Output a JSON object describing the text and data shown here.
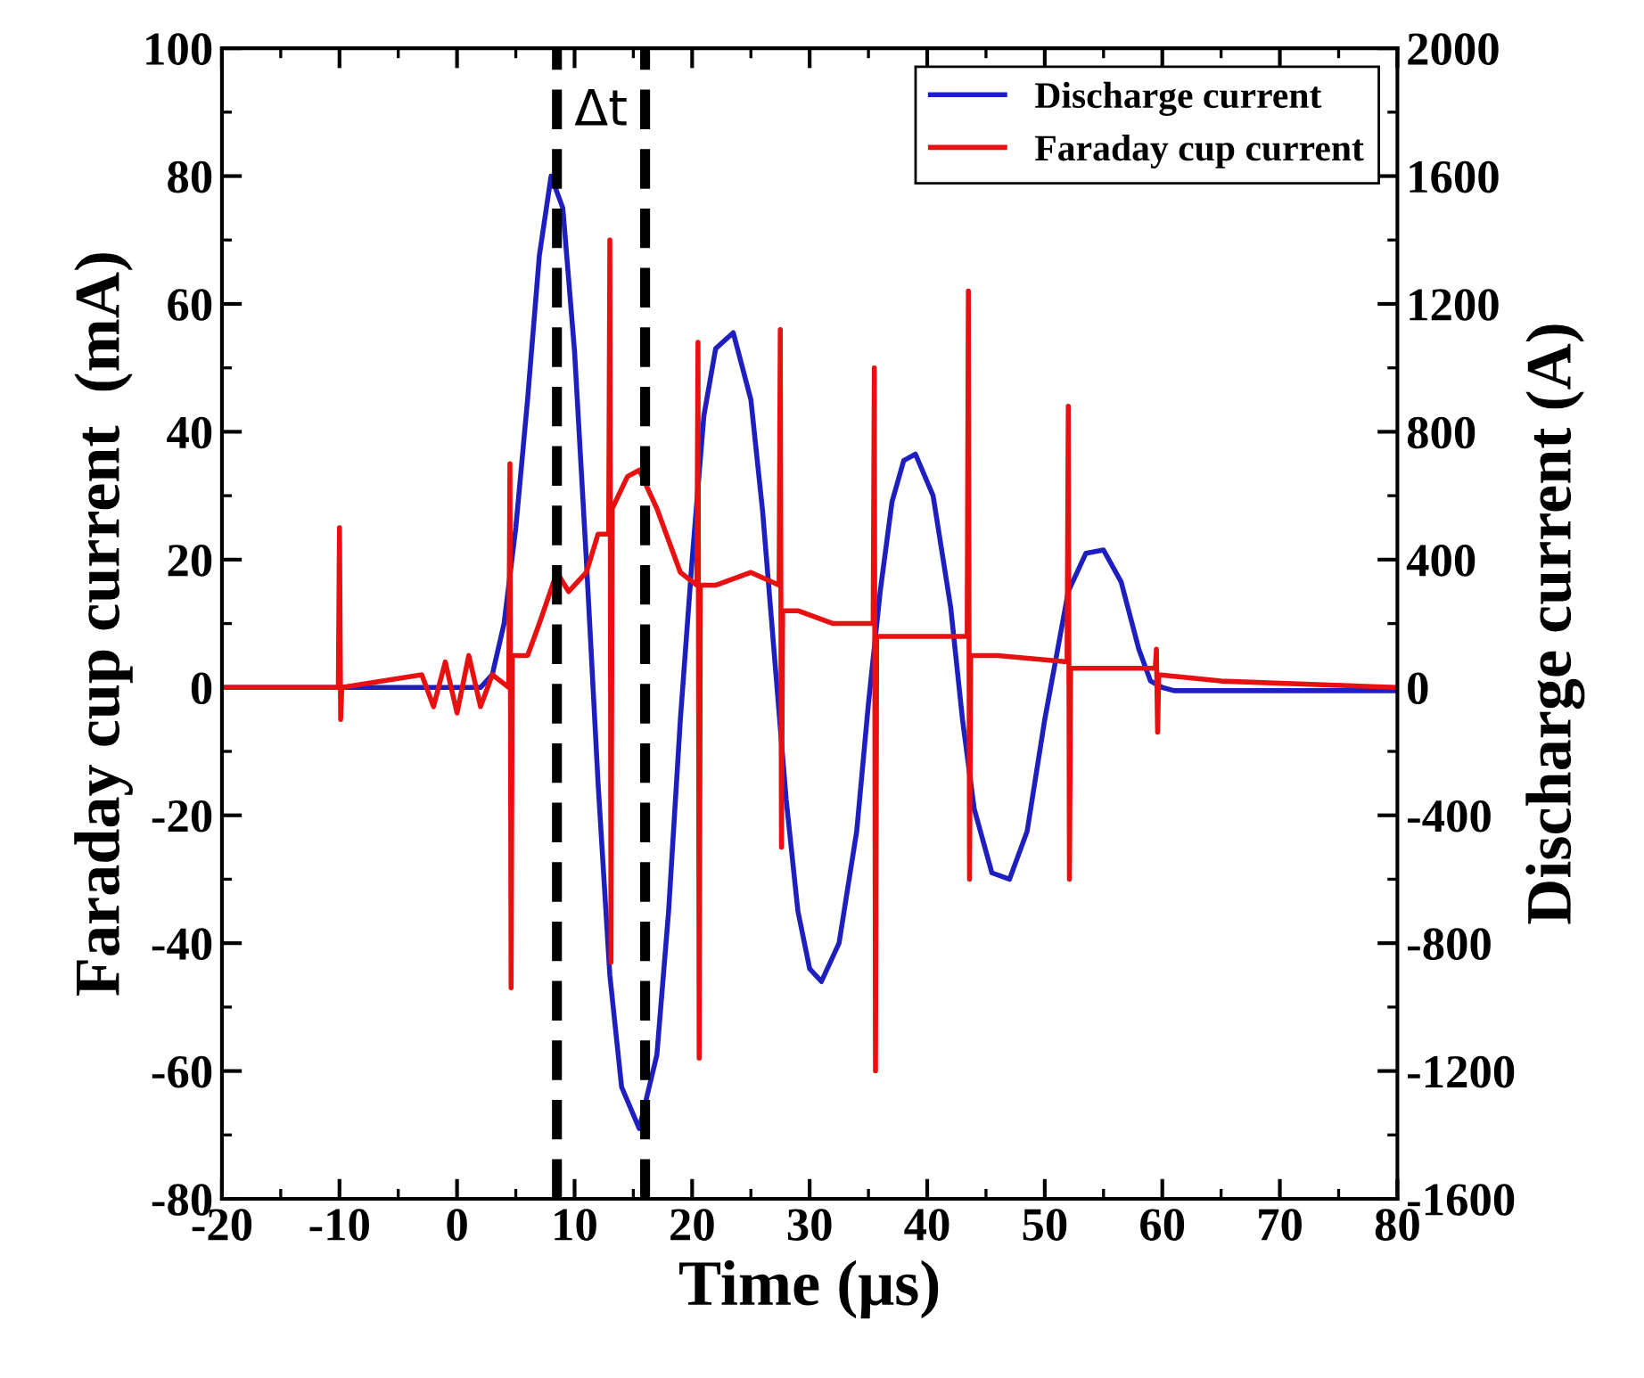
{
  "chart_data": {
    "type": "line",
    "xlabel": "Time (μs)",
    "ylabel": "Faraday cup current  (mA)",
    "y2label": "Discharge current (A)",
    "xlim": [
      -20,
      80
    ],
    "xticks": [
      -20,
      -10,
      0,
      10,
      20,
      30,
      40,
      50,
      60,
      70,
      80
    ],
    "ylim": [
      -80,
      100
    ],
    "yticks": [
      -80,
      -60,
      -40,
      -20,
      0,
      20,
      40,
      60,
      80,
      100
    ],
    "y2lim": [
      -1600,
      2000
    ],
    "y2ticks": [
      -1600,
      -1200,
      -800,
      -400,
      0,
      400,
      800,
      1200,
      1600,
      2000
    ],
    "legend": "top right",
    "grid": false,
    "marker": "none",
    "line_style": "solid",
    "series": [
      {
        "name": "Discharge current",
        "color": "#1f1fbf",
        "axis": "y2",
        "x": [
          -20,
          2,
          3,
          4,
          5,
          6,
          7,
          8,
          9,
          10,
          11,
          12,
          13,
          14,
          15.5,
          17,
          18,
          19,
          20,
          21,
          22,
          23.5,
          25,
          26,
          27,
          28,
          29,
          30,
          31,
          32.5,
          34,
          35,
          36,
          37,
          38,
          39,
          40.5,
          42,
          43,
          44,
          45.5,
          47,
          48.5,
          50,
          51,
          52,
          53.5,
          55,
          56.5,
          58,
          59,
          60,
          61,
          80
        ],
        "values": [
          0,
          0,
          40,
          200,
          500,
          900,
          1350,
          1600,
          1500,
          1050,
          400,
          -300,
          -900,
          -1250,
          -1380,
          -1150,
          -700,
          -100,
          400,
          850,
          1060,
          1110,
          900,
          550,
          100,
          -350,
          -700,
          -880,
          -920,
          -800,
          -450,
          -50,
          300,
          580,
          710,
          730,
          600,
          250,
          -100,
          -380,
          -580,
          -600,
          -450,
          -100,
          100,
          300,
          420,
          430,
          330,
          120,
          20,
          0,
          -10,
          -10
        ]
      },
      {
        "name": "Faraday cup current",
        "color": "#e81010",
        "axis": "y",
        "x": [
          -20,
          -10.1,
          -10,
          -9.9,
          -9.8,
          -3,
          -2,
          -1,
          0,
          1,
          2,
          3,
          4.4,
          4.5,
          4.6,
          4.7,
          6,
          7,
          8.5,
          9.5,
          11,
          12,
          12.9,
          13,
          13.1,
          13.2,
          14.5,
          15.5,
          17,
          19,
          20.4,
          20.5,
          20.6,
          20.7,
          22,
          25,
          27.4,
          27.5,
          27.6,
          27.7,
          29,
          32,
          35.4,
          35.5,
          35.6,
          35.7,
          38,
          43.4,
          43.5,
          43.6,
          43.7,
          46,
          51.9,
          52,
          52.1,
          52.2,
          55,
          59.4,
          59.5,
          59.6,
          59.7,
          65,
          80
        ],
        "values": [
          0,
          0,
          25,
          -5,
          0,
          2,
          -3,
          4,
          -4,
          5,
          -3,
          2,
          0,
          35,
          -47,
          5,
          5,
          10,
          18,
          15,
          18,
          24,
          24,
          70,
          -43,
          28,
          33,
          34,
          28,
          18,
          16,
          54,
          -58,
          16,
          16,
          18,
          16,
          56,
          -25,
          12,
          12,
          10,
          10,
          50,
          -60,
          8,
          8,
          8,
          62,
          -30,
          5,
          5,
          4,
          44,
          -30,
          3,
          3,
          3,
          6,
          -7,
          2,
          1,
          0
        ]
      }
    ],
    "ref_lines": [
      {
        "axis": "x",
        "value": 8.5,
        "color": "#000000",
        "line_style": "dashed"
      },
      {
        "axis": "x",
        "value": 16,
        "color": "#000000",
        "line_style": "dashed"
      }
    ],
    "annotations": [
      "Δt"
    ]
  }
}
